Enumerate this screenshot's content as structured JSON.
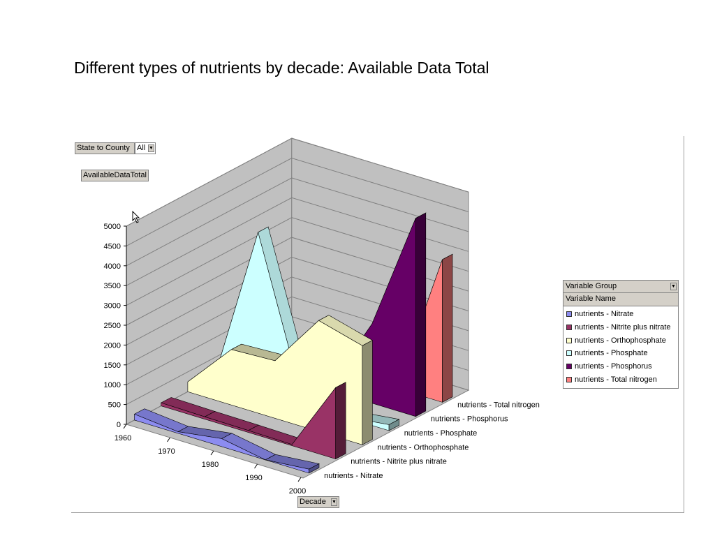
{
  "page": {
    "title": "Different types of nutrients by decade: Available Data Total"
  },
  "filter": {
    "field_label": "State to County",
    "selected_value": "All"
  },
  "data_field": {
    "label": "AvailableDataTotal"
  },
  "category_field": {
    "label": "Decade"
  },
  "legend": {
    "group_label": "Variable Group",
    "name_label": "Variable Name"
  },
  "colors": {
    "nutrients - Nitrate": "#8c8cf0",
    "nutrients - Nitrite plus nitrate": "#993366",
    "nutrients - Orthophosphate": "#ffffcc",
    "nutrients - Phosphate": "#ccffff",
    "nutrients - Phosphorus": "#660066",
    "nutrients - Total nitrogen": "#ff8080"
  },
  "chart_data": {
    "type": "area",
    "three_d": true,
    "title": "Different types of nutrients by decade: Available Data Total",
    "categories": [
      "1960",
      "1970",
      "1980",
      "1990",
      "2000"
    ],
    "ylim": [
      0,
      5000
    ],
    "yticks": [
      0,
      500,
      1000,
      1500,
      2000,
      2500,
      3000,
      3500,
      4000,
      4500,
      5000
    ],
    "grid": true,
    "legend_position": "right",
    "series": [
      {
        "name": "nutrients - Nitrate",
        "values": [
          150,
          40,
          200,
          0,
          100
        ]
      },
      {
        "name": "nutrients - Nitrite plus nitrate",
        "values": [
          80,
          60,
          50,
          30,
          1800
        ]
      },
      {
        "name": "nutrients - Orthophosphate",
        "values": [
          250,
          1400,
          1450,
          2800,
          2500
        ]
      },
      {
        "name": "nutrients - Phosphate",
        "values": [
          0,
          4000,
          200,
          20,
          150
        ]
      },
      {
        "name": "nutrients - Phosphorus",
        "values": [
          0,
          50,
          80,
          2000,
          5000
        ]
      },
      {
        "name": "nutrients - Total nitrogen",
        "values": [
          0,
          80,
          30,
          150,
          3600
        ]
      }
    ]
  }
}
